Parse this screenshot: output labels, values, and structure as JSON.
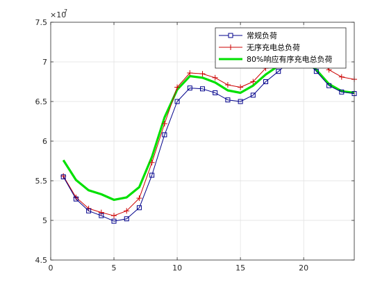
{
  "figure": {
    "exponent_base": "×10",
    "exponent_power": "7"
  },
  "chart_data": {
    "type": "line",
    "title": "",
    "xlabel": "",
    "ylabel": "",
    "xlim": [
      0,
      24
    ],
    "ylim": [
      4.5,
      7.5
    ],
    "y_scale_note": "values in units of 1e7",
    "grid": true,
    "legend_placement": "top-right",
    "x_ticks": [
      0,
      5,
      10,
      15,
      20
    ],
    "x_tick_labels": [
      "0",
      "5",
      "10",
      "15",
      "20"
    ],
    "y_ticks": [
      4.5,
      5,
      5.5,
      6,
      6.5,
      7,
      7.5
    ],
    "y_tick_labels": [
      "4.5",
      "5",
      "5.5",
      "6",
      "6.5",
      "7",
      "7.5"
    ],
    "x": [
      1,
      2,
      3,
      4,
      5,
      6,
      7,
      8,
      9,
      10,
      11,
      12,
      13,
      14,
      15,
      16,
      17,
      18,
      19,
      20,
      21,
      22,
      23,
      24
    ],
    "series": [
      {
        "name": "常规负荷",
        "color": "#00008b",
        "marker": "square",
        "values": [
          5.55,
          5.27,
          5.12,
          5.06,
          4.99,
          5.02,
          5.16,
          5.57,
          6.08,
          6.5,
          6.67,
          6.66,
          6.61,
          6.52,
          6.5,
          6.58,
          6.75,
          6.88,
          7.02,
          7.05,
          6.88,
          6.7,
          6.62,
          6.6
        ]
      },
      {
        "name": "无序充电总负荷",
        "color": "#cc0000",
        "marker": "plus",
        "values": [
          5.56,
          5.29,
          5.15,
          5.1,
          5.06,
          5.12,
          5.28,
          5.73,
          6.22,
          6.68,
          6.86,
          6.85,
          6.8,
          6.71,
          6.68,
          6.75,
          6.92,
          7.03,
          7.18,
          7.22,
          7.08,
          6.9,
          6.81,
          6.78
        ]
      },
      {
        "name": "80%响应有序充电总负荷",
        "color": "#00e000",
        "marker": "none",
        "values": [
          5.76,
          5.51,
          5.38,
          5.33,
          5.26,
          5.29,
          5.42,
          5.8,
          6.3,
          6.65,
          6.82,
          6.8,
          6.74,
          6.64,
          6.61,
          6.7,
          6.84,
          6.95,
          7.05,
          7.02,
          6.9,
          6.72,
          6.63,
          6.61
        ]
      }
    ]
  }
}
